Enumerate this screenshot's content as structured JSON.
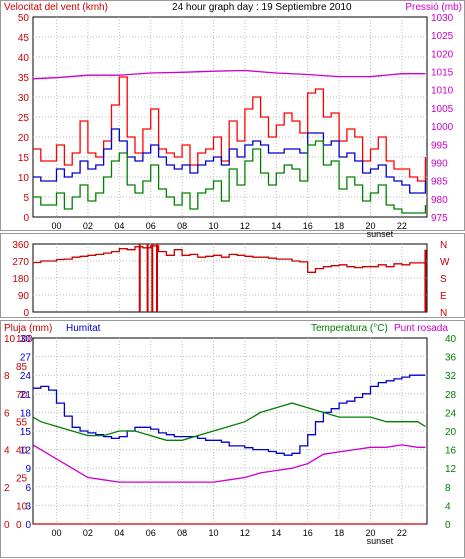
{
  "chart_data": [
    {
      "type": "line",
      "title": "24 hour graph day : 19 Septiembre 2010",
      "ylabel_left": "Velocitat del vent (kmh)",
      "ylabel_right": "Pressió (mb)",
      "x_ticks": [
        "00",
        "02",
        "04",
        "06",
        "08",
        "10",
        "12",
        "14",
        "16",
        "18",
        "20",
        "22",
        "sunset"
      ],
      "y_left_ticks": [
        "0",
        "5",
        "10",
        "15",
        "20",
        "25",
        "30",
        "35",
        "40",
        "45",
        "50"
      ],
      "y_left_range": [
        0,
        50
      ],
      "y_right_ticks": [
        "975",
        "980",
        "985",
        "990",
        "995",
        "1000",
        "1005",
        "1010",
        "1015",
        "1020",
        "1025",
        "1030"
      ],
      "y_right_range": [
        975,
        1030
      ],
      "series": [
        {
          "name": "Pressió",
          "axis": "right",
          "color": "#cc00cc",
          "x": [
            -1.5,
            0,
            2,
            4,
            6,
            8,
            10,
            12,
            14,
            16,
            18,
            20,
            22,
            23.5
          ],
          "y": [
            1013,
            1013.3,
            1014,
            1014,
            1014.6,
            1014.8,
            1015.1,
            1015.3,
            1014.6,
            1014.2,
            1013.6,
            1013.6,
            1014.4,
            1014.4
          ]
        },
        {
          "color": "#ff0000",
          "x": [
            -1.5,
            -1,
            0,
            0.5,
            1,
            1.5,
            2,
            2.5,
            3,
            3.5,
            4,
            4.5,
            5,
            5.5,
            6,
            6.5,
            7,
            7.5,
            8,
            8.5,
            9,
            9.5,
            10,
            10.5,
            11,
            11.5,
            12,
            12.5,
            13,
            13.5,
            14,
            14.5,
            15,
            15.5,
            16,
            16.5,
            17,
            17.5,
            18,
            18.5,
            19,
            19.5,
            20,
            20.5,
            21,
            21.5,
            22,
            22.5,
            23,
            23.5
          ],
          "y": [
            17,
            14,
            18,
            13,
            16,
            24,
            16,
            15,
            19,
            28,
            35,
            20,
            16,
            22,
            27,
            17,
            16,
            15,
            18,
            13,
            16,
            17,
            20,
            14,
            24,
            19,
            27,
            30,
            25,
            20,
            23,
            26,
            24,
            21,
            31,
            32,
            25,
            26,
            19,
            22,
            20,
            14,
            17,
            20,
            14,
            12,
            12,
            10,
            9,
            15
          ]
        },
        {
          "color": "#0000cc",
          "x": [
            -1.5,
            -1,
            0,
            0.5,
            1,
            1.5,
            2,
            2.5,
            3,
            3.5,
            4,
            4.5,
            5,
            5.5,
            6,
            6.5,
            7,
            7.5,
            8,
            8.5,
            9,
            9.5,
            10,
            10.5,
            11,
            11.5,
            12,
            12.5,
            13,
            13.5,
            14,
            14.5,
            15,
            15.5,
            16,
            16.5,
            17,
            17.5,
            18,
            18.5,
            19,
            19.5,
            20,
            20.5,
            21,
            21.5,
            22,
            22.5,
            23,
            23.5
          ],
          "y": [
            10,
            9,
            12,
            10,
            11,
            14,
            12,
            13,
            17,
            22,
            19,
            15,
            14,
            16,
            18,
            15,
            13,
            12,
            13,
            11,
            13,
            14,
            15,
            13,
            17,
            15,
            18,
            19,
            18,
            16,
            16,
            17,
            17,
            16,
            21,
            21,
            18,
            19,
            15,
            16,
            14,
            11,
            12,
            13,
            10,
            9,
            8,
            6,
            6,
            9
          ]
        },
        {
          "color": "#008000",
          "x": [
            -1.5,
            -1,
            0,
            0.5,
            1,
            1.5,
            2,
            2.5,
            3,
            3.5,
            4,
            4.5,
            5,
            5.5,
            6,
            6.5,
            7,
            7.5,
            8,
            8.5,
            9,
            9.5,
            10,
            10.5,
            11,
            11.5,
            12,
            12.5,
            13,
            13.5,
            14,
            14.5,
            15,
            15.5,
            16,
            16.5,
            17,
            17.5,
            18,
            18.5,
            19,
            19.5,
            20,
            20.5,
            21,
            21.5,
            22,
            22.5,
            23,
            23.5
          ],
          "y": [
            5,
            3,
            6,
            2,
            5,
            8,
            4,
            6,
            10,
            14,
            16,
            8,
            6,
            9,
            13,
            7,
            5,
            3,
            6,
            2,
            6,
            7,
            9,
            4,
            12,
            8,
            14,
            17,
            11,
            8,
            11,
            13,
            12,
            9,
            18,
            19,
            13,
            14,
            7,
            10,
            8,
            4,
            6,
            8,
            3,
            2,
            1,
            1,
            1,
            3
          ]
        }
      ]
    },
    {
      "type": "line",
      "y_left_ticks": [
        "360",
        "270",
        "180",
        "90",
        "0"
      ],
      "y_left_range": [
        0,
        360
      ],
      "y_right_ticks": [
        "N",
        "W",
        "S",
        "E",
        "N"
      ],
      "series": [
        {
          "color": "#cc0000",
          "x": [
            -1.5,
            -1,
            0,
            0.5,
            1,
            1.5,
            2,
            2.5,
            3,
            3.5,
            4,
            4.5,
            5,
            5.5,
            6,
            6.5,
            7,
            7.5,
            8,
            8.5,
            9,
            9.5,
            10,
            10.5,
            11,
            11.5,
            12,
            12.5,
            13,
            13.5,
            14,
            14.5,
            15,
            15.5,
            16,
            16.5,
            17,
            17.5,
            18,
            18.5,
            19,
            19.5,
            20,
            20.5,
            21,
            21.5,
            22,
            22.5,
            23,
            23.5
          ],
          "y": [
            262,
            270,
            278,
            280,
            290,
            295,
            300,
            305,
            312,
            320,
            335,
            330,
            345,
            340,
            350,
            320,
            300,
            330,
            300,
            305,
            290,
            295,
            300,
            290,
            305,
            300,
            295,
            290,
            290,
            285,
            280,
            280,
            270,
            265,
            210,
            230,
            240,
            245,
            250,
            240,
            235,
            240,
            240,
            250,
            240,
            255,
            250,
            260,
            260,
            260
          ]
        }
      ],
      "calm_marks": [
        {
          "x": 5.3
        },
        {
          "x": 5.8
        },
        {
          "x": 6.1
        },
        {
          "x": 6.4
        }
      ]
    },
    {
      "type": "line",
      "ylabel_left": "Pluja (mm)",
      "ylabel_left2": "Humitat",
      "ylabel_right": "Temperatura (°C)",
      "ylabel_right2": "Punt rosada",
      "x_ticks": [
        "00",
        "02",
        "04",
        "06",
        "08",
        "10",
        "12",
        "14",
        "16",
        "18",
        "20",
        "22",
        "sunset"
      ],
      "y_rain_ticks": [
        "10",
        "8",
        "6",
        "4",
        "2",
        "0"
      ],
      "y_rain_range": [
        0,
        10
      ],
      "y_hum_ticks": [
        "100",
        "85",
        "70",
        "55",
        "40",
        "25",
        "10",
        "0"
      ],
      "y_hum_range": [
        0,
        100
      ],
      "y_hum_axis_ticks": [
        "30",
        "27",
        "24",
        "21",
        "18",
        "15",
        "12",
        "9",
        "6",
        "3",
        "0"
      ],
      "y_temp_ticks": [
        "40",
        "36",
        "32",
        "28",
        "24",
        "20",
        "16",
        "12",
        "8",
        "4",
        "0"
      ],
      "y_temp_range": [
        0,
        40
      ],
      "series": [
        {
          "name": "Humitat",
          "axis": "humidity",
          "color": "#0000cc",
          "x": [
            -1.5,
            -1,
            -0.5,
            0,
            0.5,
            1,
            1.5,
            2,
            2.5,
            3,
            3.5,
            4,
            4.5,
            5,
            5.5,
            6,
            6.5,
            7,
            7.5,
            8,
            8.5,
            9,
            9.5,
            10,
            10.5,
            11,
            11.5,
            12,
            12.5,
            13,
            13.5,
            14,
            14.5,
            15,
            15.5,
            16,
            16.5,
            17,
            17.5,
            18,
            18.5,
            19,
            19.5,
            20,
            20.5,
            21,
            21.5,
            22,
            22.5,
            23,
            23.5
          ],
          "y": [
            73,
            74,
            72,
            65,
            58,
            52,
            50,
            49,
            48,
            47,
            46,
            47,
            50,
            52,
            52,
            51,
            49,
            48,
            47,
            47,
            47,
            46,
            45,
            45,
            44,
            42,
            42,
            41,
            40,
            40,
            39,
            38,
            37,
            38,
            42,
            48,
            55,
            60,
            62,
            65,
            66,
            68,
            70,
            74,
            76,
            77,
            78,
            79,
            80,
            80,
            80
          ]
        },
        {
          "name": "Temperatura (°C)",
          "axis": "temp",
          "color": "#008000",
          "x": [
            -1.5,
            -1,
            0,
            1,
            2,
            3,
            4,
            5,
            6,
            7,
            8,
            9,
            10,
            11,
            12,
            13,
            14,
            15,
            16,
            17,
            18,
            19,
            20,
            21,
            22,
            23,
            23.5
          ],
          "y": [
            23,
            22,
            21,
            20,
            19,
            19,
            20,
            20,
            19,
            18,
            18,
            19,
            20,
            21,
            22,
            24,
            25,
            26,
            25,
            24,
            23,
            23,
            23,
            22,
            22,
            22,
            21
          ]
        },
        {
          "name": "Punt rosada",
          "axis": "temp",
          "color": "#cc00cc",
          "x": [
            -1.5,
            -1,
            -0.5,
            0,
            0.5,
            1,
            1.5,
            2,
            3,
            4,
            5,
            6,
            7,
            8,
            9,
            10,
            11,
            12,
            13,
            14,
            15,
            16,
            17,
            18,
            19,
            20,
            21,
            22,
            23,
            23.5
          ],
          "y": [
            17,
            16,
            15,
            14,
            13,
            12,
            11,
            10,
            9.5,
            9,
            9,
            9,
            9,
            9,
            9,
            9,
            9.5,
            10,
            11,
            11.5,
            12,
            13,
            15,
            15.5,
            16,
            16.5,
            16.5,
            17,
            16.5,
            16.5
          ]
        },
        {
          "name": "Pluja (mm)",
          "axis": "rain",
          "color": "#cc0000",
          "x": [
            -1.5,
            23.5
          ],
          "y": [
            0,
            0
          ]
        }
      ]
    }
  ]
}
